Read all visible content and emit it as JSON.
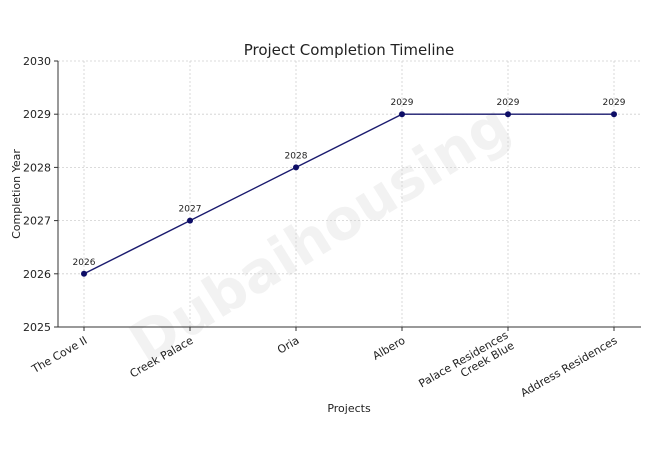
{
  "chart_data": {
    "type": "line",
    "title": "Project Completion Timeline",
    "xlabel": "Projects",
    "ylabel": "Completion Year",
    "categories": [
      "The Cove II",
      "Creek Palace",
      "Oria",
      "Albero",
      "Palace Residences\nCreek Blue",
      "Address Residences"
    ],
    "series": [
      {
        "values": [
          2026,
          2027,
          2028,
          2029,
          2029,
          2029
        ]
      }
    ],
    "ylim": [
      2025,
      2030
    ],
    "yticks": [
      2025,
      2026,
      2027,
      2028,
      2029,
      2030
    ],
    "grid": true,
    "colors": {
      "line": "#1a1a6e",
      "marker": "#0d0d66"
    },
    "watermark": "Dubaihousing"
  }
}
